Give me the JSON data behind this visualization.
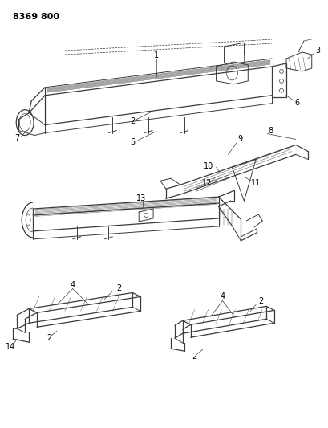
{
  "title": "8369 800",
  "bg_color": "#ffffff",
  "line_color": "#3a3a3a",
  "text_color": "#000000",
  "fig_width": 4.1,
  "fig_height": 5.33,
  "dpi": 100
}
